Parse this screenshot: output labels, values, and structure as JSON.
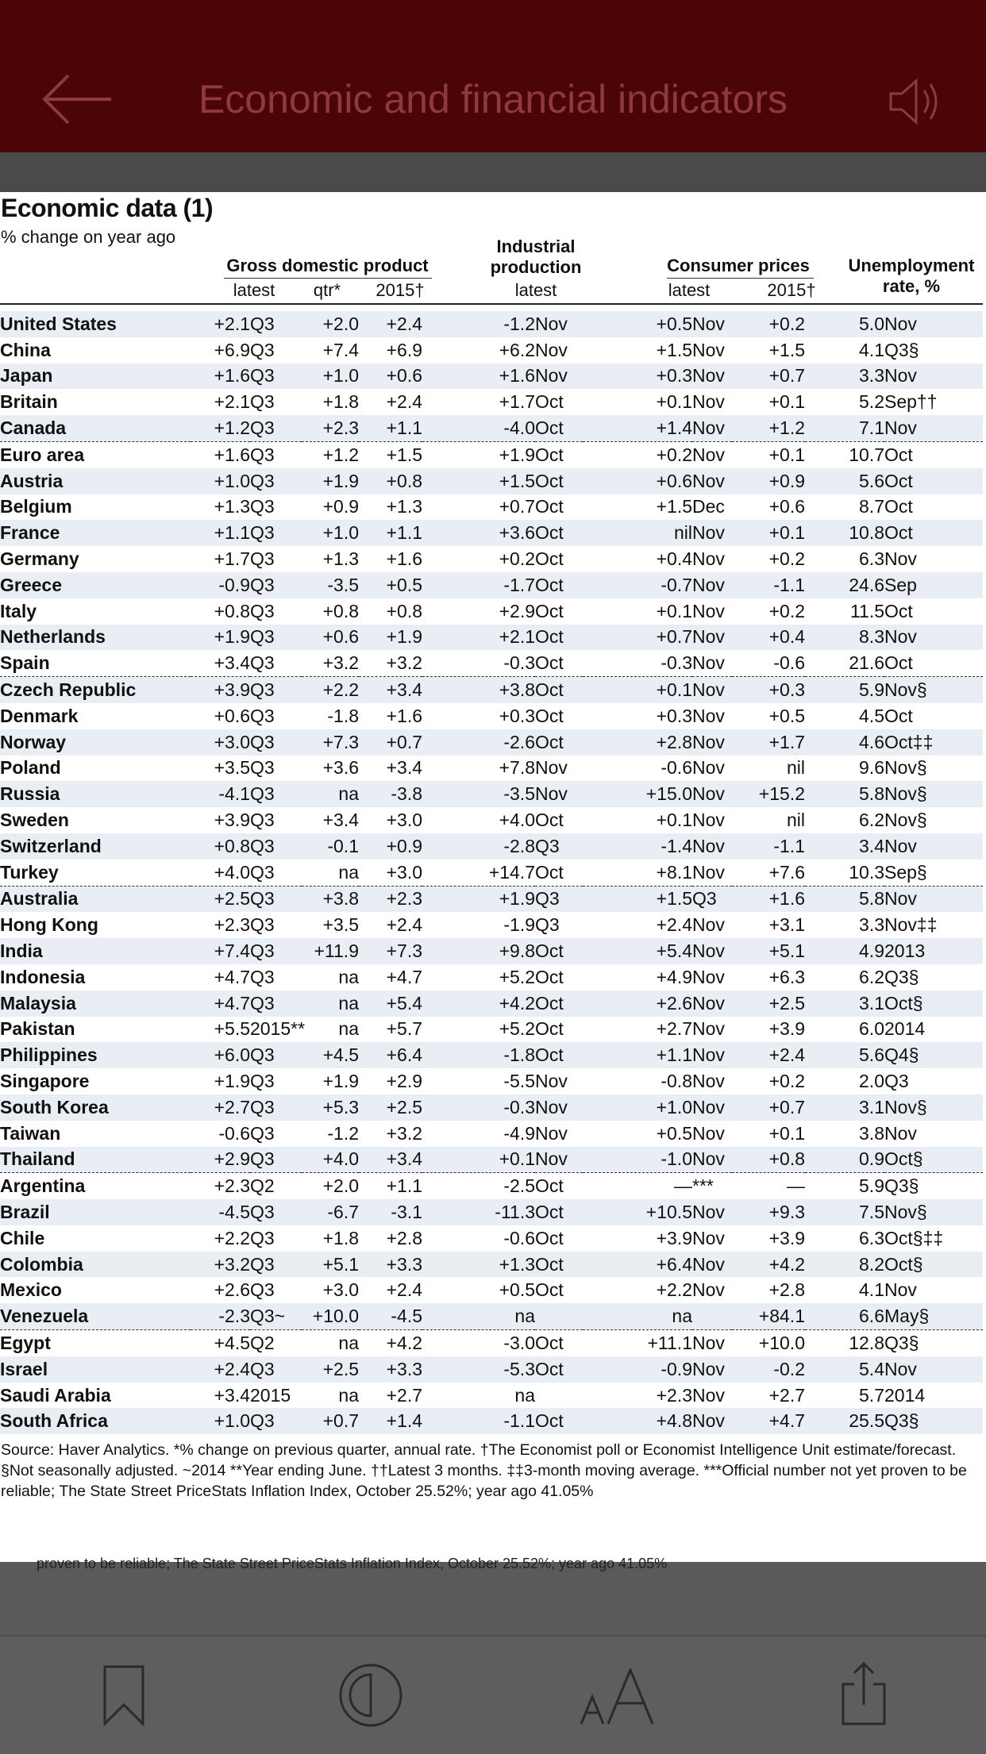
{
  "header": {
    "title": "Economic and financial indicators",
    "back_icon": "arrow-left-icon",
    "speaker_icon": "speaker-icon"
  },
  "section": {
    "title": "Economic data (1)",
    "subtitle": "% change on year ago"
  },
  "table": {
    "groups": {
      "gdp": "Gross domestic product",
      "industrial": "Industrial production",
      "consumer": "Consumer prices",
      "unemployment": "Unemployment rate, %"
    },
    "subheaders": {
      "gdp_latest": "latest",
      "gdp_qtr": "qtr*",
      "gdp_2015": "2015†",
      "ind_latest": "latest",
      "cp_latest": "latest",
      "cp_2015": "2015†"
    },
    "rows": [
      [
        "United States",
        "+2.1",
        "Q3",
        "+2.0",
        "+2.4",
        "-1.2",
        "Nov",
        "+0.5",
        "Nov",
        "+0.2",
        "5.0",
        "Nov"
      ],
      [
        "China",
        "+6.9",
        "Q3",
        "+7.4",
        "+6.9",
        "+6.2",
        "Nov",
        "+1.5",
        "Nov",
        "+1.5",
        "4.1",
        "Q3§"
      ],
      [
        "Japan",
        "+1.6",
        "Q3",
        "+1.0",
        "+0.6",
        "+1.6",
        "Nov",
        "+0.3",
        "Nov",
        "+0.7",
        "3.3",
        "Nov"
      ],
      [
        "Britain",
        "+2.1",
        "Q3",
        "+1.8",
        "+2.4",
        "+1.7",
        "Oct",
        "+0.1",
        "Nov",
        "+0.1",
        "5.2",
        "Sep††"
      ],
      [
        "Canada",
        "+1.2",
        "Q3",
        "+2.3",
        "+1.1",
        "-4.0",
        "Oct",
        "+1.4",
        "Nov",
        "+1.2",
        "7.1",
        "Nov"
      ],
      [
        "Euro area",
        "+1.6",
        "Q3",
        "+1.2",
        "+1.5",
        "+1.9",
        "Oct",
        "+0.2",
        "Nov",
        "+0.1",
        "10.7",
        "Oct"
      ],
      [
        "Austria",
        "+1.0",
        "Q3",
        "+1.9",
        "+0.8",
        "+1.5",
        "Oct",
        "+0.6",
        "Nov",
        "+0.9",
        "5.6",
        "Oct"
      ],
      [
        "Belgium",
        "+1.3",
        "Q3",
        "+0.9",
        "+1.3",
        "+0.7",
        "Oct",
        "+1.5",
        "Dec",
        "+0.6",
        "8.7",
        "Oct"
      ],
      [
        "France",
        "+1.1",
        "Q3",
        "+1.0",
        "+1.1",
        "+3.6",
        "Oct",
        "nil",
        "Nov",
        "+0.1",
        "10.8",
        "Oct"
      ],
      [
        "Germany",
        "+1.7",
        "Q3",
        "+1.3",
        "+1.6",
        "+0.2",
        "Oct",
        "+0.4",
        "Nov",
        "+0.2",
        "6.3",
        "Nov"
      ],
      [
        "Greece",
        "-0.9",
        "Q3",
        "-3.5",
        "+0.5",
        "-1.7",
        "Oct",
        "-0.7",
        "Nov",
        "-1.1",
        "24.6",
        "Sep"
      ],
      [
        "Italy",
        "+0.8",
        "Q3",
        "+0.8",
        "+0.8",
        "+2.9",
        "Oct",
        "+0.1",
        "Nov",
        "+0.2",
        "11.5",
        "Oct"
      ],
      [
        "Netherlands",
        "+1.9",
        "Q3",
        "+0.6",
        "+1.9",
        "+2.1",
        "Oct",
        "+0.7",
        "Nov",
        "+0.4",
        "8.3",
        "Nov"
      ],
      [
        "Spain",
        "+3.4",
        "Q3",
        "+3.2",
        "+3.2",
        "-0.3",
        "Oct",
        "-0.3",
        "Nov",
        "-0.6",
        "21.6",
        "Oct"
      ],
      [
        "Czech Republic",
        "+3.9",
        "Q3",
        "+2.2",
        "+3.4",
        "+3.8",
        "Oct",
        "+0.1",
        "Nov",
        "+0.3",
        "5.9",
        "Nov§"
      ],
      [
        "Denmark",
        "+0.6",
        "Q3",
        "-1.8",
        "+1.6",
        "+0.3",
        "Oct",
        "+0.3",
        "Nov",
        "+0.5",
        "4.5",
        "Oct"
      ],
      [
        "Norway",
        "+3.0",
        "Q3",
        "+7.3",
        "+0.7",
        "-2.6",
        "Oct",
        "+2.8",
        "Nov",
        "+1.7",
        "4.6",
        "Oct‡‡"
      ],
      [
        "Poland",
        "+3.5",
        "Q3",
        "+3.6",
        "+3.4",
        "+7.8",
        "Nov",
        "-0.6",
        "Nov",
        "nil",
        "9.6",
        "Nov§"
      ],
      [
        "Russia",
        "-4.1",
        "Q3",
        "na",
        "-3.8",
        "-3.5",
        "Nov",
        "+15.0",
        "Nov",
        "+15.2",
        "5.8",
        "Nov§"
      ],
      [
        "Sweden",
        "+3.9",
        "Q3",
        "+3.4",
        "+3.0",
        "+4.0",
        "Oct",
        "+0.1",
        "Nov",
        "nil",
        "6.2",
        "Nov§"
      ],
      [
        "Switzerland",
        "+0.8",
        "Q3",
        "-0.1",
        "+0.9",
        "-2.8",
        "Q3",
        "-1.4",
        "Nov",
        "-1.1",
        "3.4",
        "Nov"
      ],
      [
        "Turkey",
        "+4.0",
        "Q3",
        "na",
        "+3.0",
        "+14.7",
        "Oct",
        "+8.1",
        "Nov",
        "+7.6",
        "10.3",
        "Sep§"
      ],
      [
        "Australia",
        "+2.5",
        "Q3",
        "+3.8",
        "+2.3",
        "+1.9",
        "Q3",
        "+1.5",
        "Q3",
        "+1.6",
        "5.8",
        "Nov"
      ],
      [
        "Hong Kong",
        "+2.3",
        "Q3",
        "+3.5",
        "+2.4",
        "-1.9",
        "Q3",
        "+2.4",
        "Nov",
        "+3.1",
        "3.3",
        "Nov‡‡"
      ],
      [
        "India",
        "+7.4",
        "Q3",
        "+11.9",
        "+7.3",
        "+9.8",
        "Oct",
        "+5.4",
        "Nov",
        "+5.1",
        "4.9",
        "2013"
      ],
      [
        "Indonesia",
        "+4.7",
        "Q3",
        "na",
        "+4.7",
        "+5.2",
        "Oct",
        "+4.9",
        "Nov",
        "+6.3",
        "6.2",
        "Q3§"
      ],
      [
        "Malaysia",
        "+4.7",
        "Q3",
        "na",
        "+5.4",
        "+4.2",
        "Oct",
        "+2.6",
        "Nov",
        "+2.5",
        "3.1",
        "Oct§"
      ],
      [
        "Pakistan",
        "+5.5",
        "2015**",
        "na",
        "+5.7",
        "+5.2",
        "Oct",
        "+2.7",
        "Nov",
        "+3.9",
        "6.0",
        "2014"
      ],
      [
        "Philippines",
        "+6.0",
        "Q3",
        "+4.5",
        "+6.4",
        "-1.8",
        "Oct",
        "+1.1",
        "Nov",
        "+2.4",
        "5.6",
        "Q4§"
      ],
      [
        "Singapore",
        "+1.9",
        "Q3",
        "+1.9",
        "+2.9",
        "-5.5",
        "Nov",
        "-0.8",
        "Nov",
        "+0.2",
        "2.0",
        "Q3"
      ],
      [
        "South Korea",
        "+2.7",
        "Q3",
        "+5.3",
        "+2.5",
        "-0.3",
        "Nov",
        "+1.0",
        "Nov",
        "+0.7",
        "3.1",
        "Nov§"
      ],
      [
        "Taiwan",
        "-0.6",
        "Q3",
        "-1.2",
        "+3.2",
        "-4.9",
        "Nov",
        "+0.5",
        "Nov",
        "+0.1",
        "3.8",
        "Nov"
      ],
      [
        "Thailand",
        "+2.9",
        "Q3",
        "+4.0",
        "+3.4",
        "+0.1",
        "Nov",
        "-1.0",
        "Nov",
        "+0.8",
        "0.9",
        "Oct§"
      ],
      [
        "Argentina",
        "+2.3",
        "Q2",
        "+2.0",
        "+1.1",
        "-2.5",
        "Oct",
        "—",
        "***",
        "—",
        "5.9",
        "Q3§"
      ],
      [
        "Brazil",
        "-4.5",
        "Q3",
        "-6.7",
        "-3.1",
        "-11.3",
        "Oct",
        "+10.5",
        "Nov",
        "+9.3",
        "7.5",
        "Nov§"
      ],
      [
        "Chile",
        "+2.2",
        "Q3",
        "+1.8",
        "+2.8",
        "-0.6",
        "Oct",
        "+3.9",
        "Nov",
        "+3.9",
        "6.3",
        "Oct§‡‡"
      ],
      [
        "Colombia",
        "+3.2",
        "Q3",
        "+5.1",
        "+3.3",
        "+1.3",
        "Oct",
        "+6.4",
        "Nov",
        "+4.2",
        "8.2",
        "Oct§"
      ],
      [
        "Mexico",
        "+2.6",
        "Q3",
        "+3.0",
        "+2.4",
        "+0.5",
        "Oct",
        "+2.2",
        "Nov",
        "+2.8",
        "4.1",
        "Nov"
      ],
      [
        "Venezuela",
        "-2.3",
        "Q3~",
        "+10.0",
        "-4.5",
        "na",
        "",
        "na",
        "",
        "+84.1",
        "6.6",
        "May§"
      ],
      [
        "Egypt",
        "+4.5",
        "Q2",
        "na",
        "+4.2",
        "-3.0",
        "Oct",
        "+11.1",
        "Nov",
        "+10.0",
        "12.8",
        "Q3§"
      ],
      [
        "Israel",
        "+2.4",
        "Q3",
        "+2.5",
        "+3.3",
        "-5.3",
        "Oct",
        "-0.9",
        "Nov",
        "-0.2",
        "5.4",
        "Nov"
      ],
      [
        "Saudi Arabia",
        "+3.4",
        "2015",
        "na",
        "+2.7",
        "na",
        "",
        "+2.3",
        "Nov",
        "+2.7",
        "5.7",
        "2014"
      ],
      [
        "South Africa",
        "+1.0",
        "Q3",
        "+0.7",
        "+1.4",
        "-1.1",
        "Oct",
        "+4.8",
        "Nov",
        "+4.7",
        "25.5",
        "Q3§"
      ]
    ]
  },
  "footnote": "Source: Haver Analytics. *% change on previous quarter, annual rate. †The Economist poll or Economist Intelligence Unit estimate/forecast. §Not seasonally adjusted. ~2014 **Year ending June. ††Latest 3 months. ‡‡3-month moving average. ***Official number not yet proven to be reliable; The State Street PriceStats Inflation Index, October 25.52%; year ago 41.05%",
  "ghost_text": "proven to be reliable; The State Street PriceStats Inflation Index, October 25.52%; year ago 41.05%",
  "toolbar": {
    "icons": [
      "bookmark-icon",
      "contrast-icon",
      "text-size-icon",
      "share-icon"
    ]
  }
}
